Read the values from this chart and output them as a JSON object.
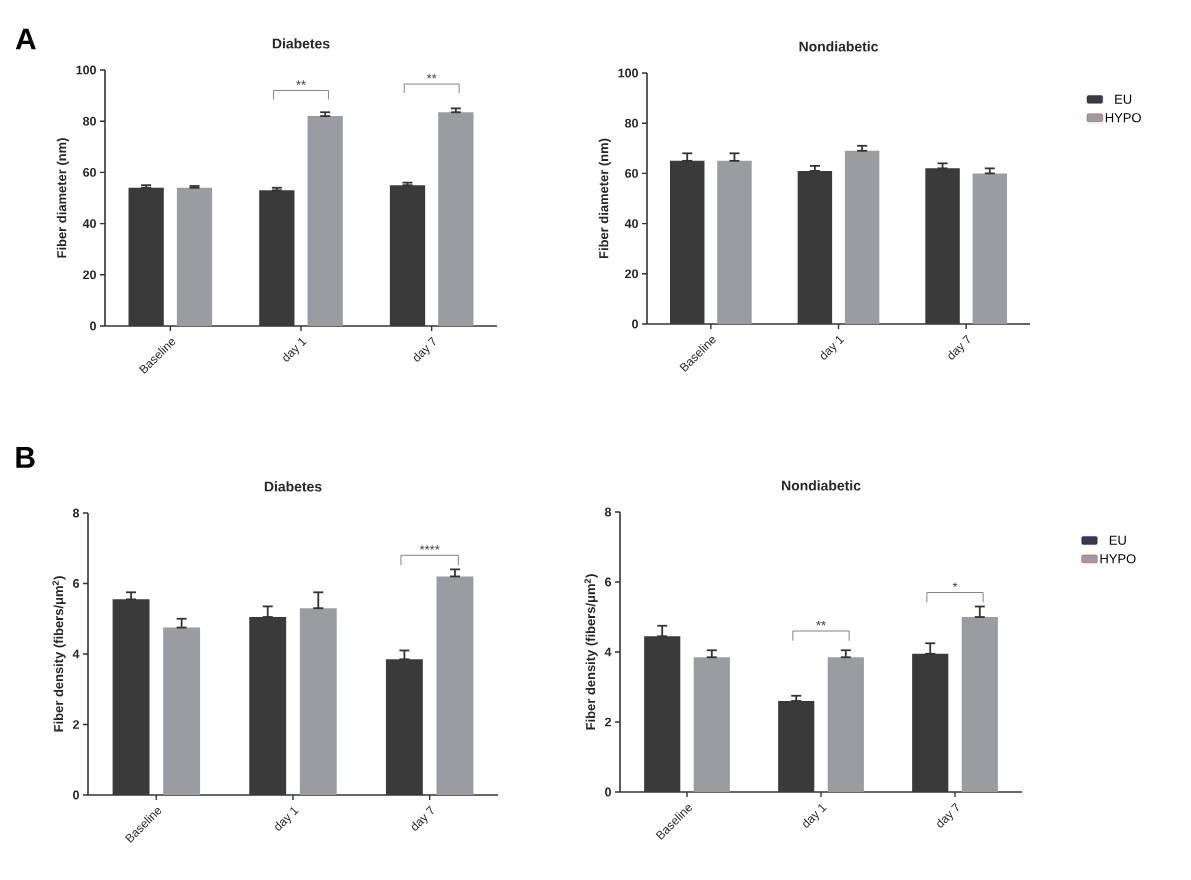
{
  "chart_data": [
    {
      "type": "bar",
      "title": "Diabetes",
      "ylabel": "Fiber diameter (nm)",
      "categories": [
        "Baseline",
        "day 1",
        "day 7"
      ],
      "ylim": [
        0,
        100
      ],
      "yticks": [
        0,
        20,
        40,
        60,
        80,
        100
      ],
      "legend": false,
      "series": [
        {
          "color": "#3a3a3a",
          "values": [
            54,
            53,
            55
          ],
          "errors": [
            [
              54,
              55
            ],
            [
              53,
              54
            ],
            [
              55,
              56
            ]
          ]
        },
        {
          "color": "#9b9c9f",
          "values": [
            54,
            82,
            83.5
          ],
          "errors": [
            [
              54,
              54.7
            ],
            [
              82,
              83.5
            ],
            [
              83.5,
              85
            ]
          ]
        }
      ],
      "annotations": [
        "A",
        "**",
        "**"
      ]
    },
    {
      "type": "bar",
      "title": "Nondiabetic",
      "ylabel": "Fiber diameter (nm)",
      "categories": [
        "Baseline",
        "day 1",
        "day 7"
      ],
      "ylim": [
        0,
        100
      ],
      "yticks": [
        0,
        20,
        40,
        60,
        80,
        100
      ],
      "legend": "right",
      "series": [
        {
          "name": "EU",
          "color": "#3a3a3a",
          "values": [
            65,
            61,
            62
          ],
          "errors": [
            [
              65,
              68
            ],
            [
              61,
              63
            ],
            [
              62,
              64
            ]
          ]
        },
        {
          "name": "HYPO",
          "color": "#9b9c9f",
          "values": [
            65,
            69,
            60
          ],
          "errors": [
            [
              65,
              68
            ],
            [
              69,
              71
            ],
            [
              60,
              62
            ]
          ]
        }
      ]
    },
    {
      "type": "bar",
      "title": "Diabetes",
      "ylabel": "Fiber density (fibers/μm$^{2}$)",
      "categories": [
        "Baseline",
        "day 1",
        "day 7"
      ],
      "ylim": [
        0,
        8
      ],
      "yticks": [
        0,
        2,
        4,
        6,
        8
      ],
      "legend": false,
      "series": [
        {
          "color": "#3a3a3a",
          "values": [
            5.55,
            5.05,
            3.85
          ],
          "errors": [
            [
              5.55,
              5.75
            ],
            [
              5.05,
              5.35
            ],
            [
              3.85,
              4.1
            ]
          ]
        },
        {
          "color": "#9b9c9f",
          "values": [
            4.75,
            5.3,
            6.2
          ],
          "errors": [
            [
              4.75,
              5.0
            ],
            [
              5.3,
              5.75
            ],
            [
              6.2,
              6.4
            ]
          ]
        }
      ],
      "annotations": [
        "B",
        "****"
      ]
    },
    {
      "type": "bar",
      "title": "Nondiabetic",
      "ylabel": "Fiber density (fibers/μm$^{2}$)",
      "categories": [
        "Baseline",
        "day 1",
        "day 7"
      ],
      "ylim": [
        0,
        8
      ],
      "yticks": [
        0,
        2,
        4,
        6,
        8
      ],
      "legend": "right",
      "series": [
        {
          "name": "EU",
          "color": "#3a3a3a",
          "values": [
            4.45,
            2.6,
            3.95
          ],
          "errors": [
            [
              4.45,
              4.75
            ],
            [
              2.6,
              2.75
            ],
            [
              3.95,
              4.25
            ]
          ]
        },
        {
          "name": "HYPO",
          "color": "#9b9c9f",
          "values": [
            3.85,
            3.85,
            5.0
          ],
          "errors": [
            [
              3.85,
              4.05
            ],
            [
              3.85,
              4.05
            ],
            [
              5.0,
              5.3
            ]
          ]
        }
      ],
      "annotations": [
        "**",
        "*"
      ]
    }
  ]
}
